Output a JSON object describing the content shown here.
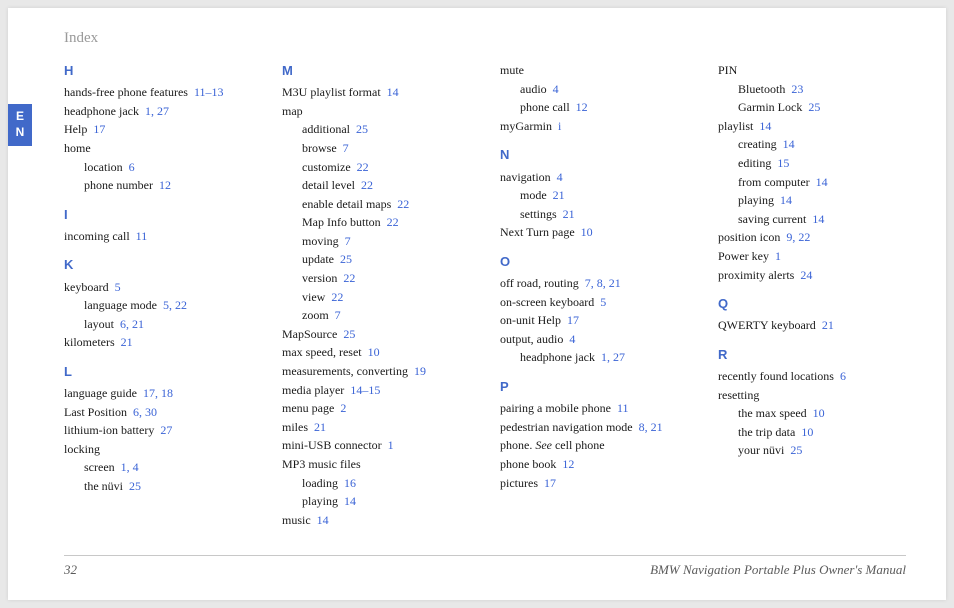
{
  "header": "Index",
  "langTab": [
    "E",
    "N"
  ],
  "pageNumber": "32",
  "manualTitle": "BMW Navigation Portable Plus Owner's Manual",
  "columns": [
    [
      {
        "type": "letter",
        "text": "H"
      },
      {
        "type": "entry",
        "text": "hands-free phone features",
        "pages": "11–13"
      },
      {
        "type": "entry",
        "text": "headphone jack",
        "pages": "1, 27"
      },
      {
        "type": "entry",
        "text": "Help",
        "pages": "17"
      },
      {
        "type": "entry",
        "text": "home"
      },
      {
        "type": "sub1",
        "text": "location",
        "pages": "6"
      },
      {
        "type": "sub1",
        "text": "phone number",
        "pages": "12"
      },
      {
        "type": "letter",
        "text": "I"
      },
      {
        "type": "entry",
        "text": "incoming call",
        "pages": "11"
      },
      {
        "type": "letter",
        "text": "K"
      },
      {
        "type": "entry",
        "text": "keyboard",
        "pages": "5"
      },
      {
        "type": "sub1",
        "text": "language mode",
        "pages": "5, 22"
      },
      {
        "type": "sub1",
        "text": "layout",
        "pages": "6, 21"
      },
      {
        "type": "entry",
        "text": "kilometers",
        "pages": "21"
      },
      {
        "type": "letter",
        "text": "L"
      },
      {
        "type": "entry",
        "text": "language guide",
        "pages": "17, 18"
      },
      {
        "type": "entry",
        "text": "Last Position",
        "pages": "6, 30"
      },
      {
        "type": "entry",
        "text": "lithium-ion battery",
        "pages": "27"
      },
      {
        "type": "entry",
        "text": "locking"
      },
      {
        "type": "sub1",
        "text": "screen",
        "pages": "1, 4"
      },
      {
        "type": "sub1",
        "text": "the nüvi",
        "pages": "25"
      }
    ],
    [
      {
        "type": "letter",
        "text": "M"
      },
      {
        "type": "entry",
        "text": "M3U playlist format",
        "pages": "14"
      },
      {
        "type": "entry",
        "text": "map"
      },
      {
        "type": "sub1",
        "text": "additional",
        "pages": "25"
      },
      {
        "type": "sub1",
        "text": "browse",
        "pages": "7"
      },
      {
        "type": "sub1",
        "text": "customize",
        "pages": "22"
      },
      {
        "type": "sub1",
        "text": "detail level",
        "pages": "22"
      },
      {
        "type": "sub1",
        "text": "enable detail maps",
        "pages": "22"
      },
      {
        "type": "sub1",
        "text": "Map Info button",
        "pages": "22"
      },
      {
        "type": "sub1",
        "text": "moving",
        "pages": "7"
      },
      {
        "type": "sub1",
        "text": "update",
        "pages": "25"
      },
      {
        "type": "sub1",
        "text": "version",
        "pages": "22"
      },
      {
        "type": "sub1",
        "text": "view",
        "pages": "22"
      },
      {
        "type": "sub1",
        "text": "zoom",
        "pages": "7"
      },
      {
        "type": "entry",
        "text": "MapSource",
        "pages": "25"
      },
      {
        "type": "entry",
        "text": "max speed, reset",
        "pages": "10"
      },
      {
        "type": "entry",
        "text": "measurements, converting",
        "pages": "19"
      },
      {
        "type": "entry",
        "text": "media player",
        "pages": "14–15"
      },
      {
        "type": "entry",
        "text": "menu page",
        "pages": "2"
      },
      {
        "type": "entry",
        "text": "miles",
        "pages": "21"
      },
      {
        "type": "entry",
        "text": "mini-USB connector",
        "pages": "1"
      },
      {
        "type": "entry",
        "text": "MP3 music files"
      },
      {
        "type": "sub1",
        "text": "loading",
        "pages": "16"
      },
      {
        "type": "sub1",
        "text": "playing",
        "pages": "14"
      },
      {
        "type": "entry",
        "text": "music",
        "pages": "14"
      }
    ],
    [
      {
        "type": "cont",
        "text": "mute"
      },
      {
        "type": "sub1",
        "text": "audio",
        "pages": "4"
      },
      {
        "type": "sub1",
        "text": "phone call",
        "pages": "12"
      },
      {
        "type": "entry",
        "text": "myGarmin",
        "pages": "i"
      },
      {
        "type": "letter",
        "text": "N"
      },
      {
        "type": "entry",
        "text": "navigation",
        "pages": "4"
      },
      {
        "type": "sub1",
        "text": "mode",
        "pages": "21"
      },
      {
        "type": "sub1",
        "text": "settings",
        "pages": "21"
      },
      {
        "type": "entry",
        "text": "Next Turn page",
        "pages": "10"
      },
      {
        "type": "letter",
        "text": "O"
      },
      {
        "type": "entry",
        "text": "off road, routing",
        "pages": "7, 8, 21"
      },
      {
        "type": "entry",
        "text": "on-screen keyboard",
        "pages": "5"
      },
      {
        "type": "entry",
        "text": "on-unit Help",
        "pages": "17"
      },
      {
        "type": "entry",
        "text": "output, audio",
        "pages": "4"
      },
      {
        "type": "sub1",
        "text": "headphone jack",
        "pages": "1, 27"
      },
      {
        "type": "letter",
        "text": "P"
      },
      {
        "type": "entry",
        "text": "pairing a mobile phone",
        "pages": "11"
      },
      {
        "type": "entry",
        "text": "pedestrian navigation mode",
        "pages": "8, 21"
      },
      {
        "type": "see",
        "text": "phone.",
        "seeText": "See",
        "target": "cell phone"
      },
      {
        "type": "entry",
        "text": "phone book",
        "pages": "12"
      },
      {
        "type": "entry",
        "text": "pictures",
        "pages": "17"
      }
    ],
    [
      {
        "type": "cont",
        "text": "PIN"
      },
      {
        "type": "sub1",
        "text": "Bluetooth",
        "pages": "23"
      },
      {
        "type": "sub1",
        "text": "Garmin Lock",
        "pages": "25"
      },
      {
        "type": "entry",
        "text": "playlist",
        "pages": "14"
      },
      {
        "type": "sub1",
        "text": "creating",
        "pages": "14"
      },
      {
        "type": "sub1",
        "text": "editing",
        "pages": "15"
      },
      {
        "type": "sub1",
        "text": "from computer",
        "pages": "14"
      },
      {
        "type": "sub1",
        "text": "playing",
        "pages": "14"
      },
      {
        "type": "sub1",
        "text": "saving current",
        "pages": "14"
      },
      {
        "type": "entry",
        "text": "position icon",
        "pages": "9, 22"
      },
      {
        "type": "entry",
        "text": "Power key",
        "pages": "1"
      },
      {
        "type": "entry",
        "text": "proximity alerts",
        "pages": "24"
      },
      {
        "type": "letter",
        "text": "Q"
      },
      {
        "type": "entry",
        "text": "QWERTY keyboard",
        "pages": "21"
      },
      {
        "type": "letter",
        "text": "R"
      },
      {
        "type": "entry",
        "text": "recently found locations",
        "pages": "6"
      },
      {
        "type": "entry",
        "text": "resetting"
      },
      {
        "type": "sub1",
        "text": "the max speed",
        "pages": "10"
      },
      {
        "type": "sub1",
        "text": "the trip data",
        "pages": "10"
      },
      {
        "type": "sub1",
        "text": "your nüvi",
        "pages": "25"
      }
    ]
  ]
}
